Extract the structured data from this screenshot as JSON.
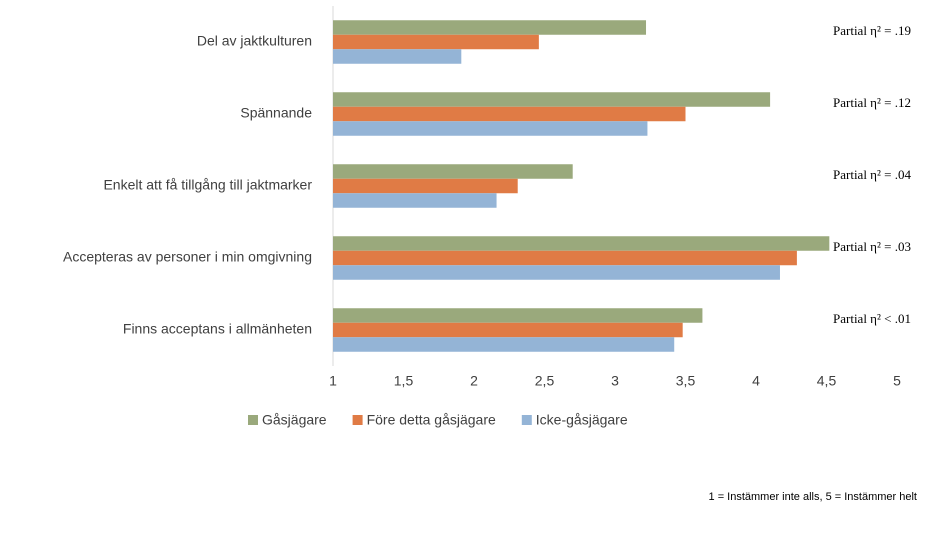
{
  "chart_data": {
    "type": "bar",
    "orientation": "horizontal",
    "categories": [
      "Del av jaktkulturen",
      "Spännande",
      "Enkelt att få tillgång till jaktmarker",
      "Accepteras av personer i min omgivning",
      "Finns acceptans i allmänheten"
    ],
    "series": [
      {
        "name": "Gåsjägare",
        "color": "#9aa97c",
        "values": [
          3.22,
          4.1,
          2.7,
          4.52,
          3.62
        ]
      },
      {
        "name": "Före detta gåsjägare",
        "color": "#e07b45",
        "values": [
          2.46,
          3.5,
          2.31,
          4.29,
          3.48
        ]
      },
      {
        "name": "Icke-gåsjägare",
        "color": "#94b4d6",
        "values": [
          1.91,
          3.23,
          2.16,
          4.17,
          3.42
        ]
      }
    ],
    "xlim": [
      1,
      5
    ],
    "xticks": [
      1,
      {
        "value": 1.5,
        "label": "1,5"
      },
      2,
      {
        "value": 2.5,
        "label": "2,5"
      },
      3,
      {
        "value": 3.5,
        "label": "3,5"
      },
      4,
      {
        "value": 4.5,
        "label": "4,5"
      },
      5
    ],
    "grid": false,
    "legend": "bottom",
    "annotations": [
      "Partial η² = .19",
      "Partial η² = .12",
      "Partial η² = .04",
      "Partial η² = .03",
      "Partial η² < .01"
    ],
    "footnote": "1 = Instämmer inte alls, 5 = Instämmer helt"
  }
}
